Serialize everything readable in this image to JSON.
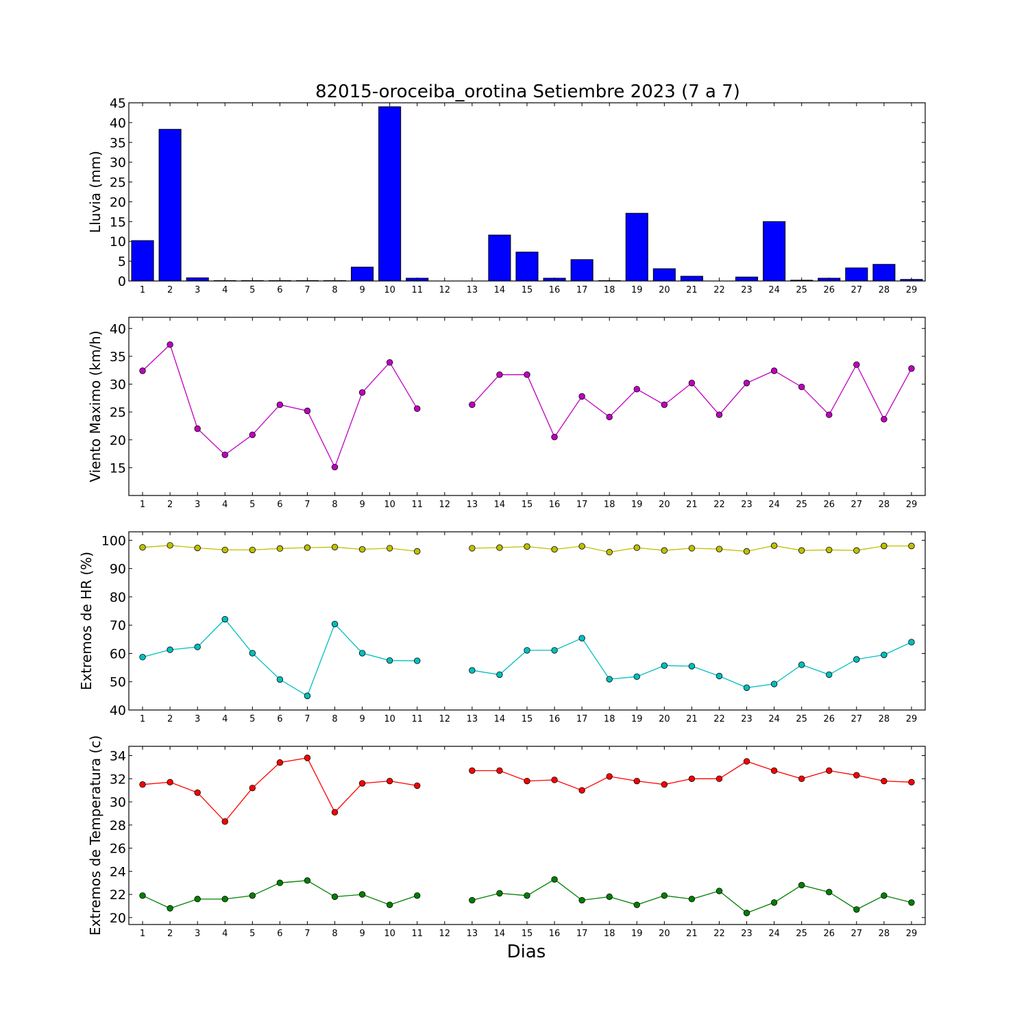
{
  "chart_data": {
    "title": "82015-oroceiba_orotina Setiembre 2023  (7 a 7)",
    "xlabel": "Dias",
    "x": [
      1,
      2,
      3,
      4,
      5,
      6,
      7,
      8,
      9,
      10,
      11,
      12,
      13,
      14,
      15,
      16,
      17,
      18,
      19,
      20,
      21,
      22,
      23,
      24,
      25,
      26,
      27,
      28,
      29
    ],
    "panels": [
      {
        "type": "bar",
        "ylabel": "Lluvia (mm)",
        "ylim": [
          0,
          45
        ],
        "yticks": [
          0,
          5,
          10,
          15,
          20,
          25,
          30,
          35,
          40,
          45
        ],
        "series": [
          {
            "color": "#0000ff",
            "values": [
              10.2,
              38.3,
              0.8,
              0.1,
              0.1,
              0.1,
              0.1,
              0.1,
              3.5,
              44.0,
              0.7,
              0,
              0,
              11.6,
              7.3,
              0.7,
              5.4,
              0.1,
              17.1,
              3.1,
              1.2,
              0,
              1.0,
              15.0,
              0.2,
              0.7,
              3.3,
              4.2,
              0.4
            ]
          }
        ]
      },
      {
        "type": "line",
        "ylabel": "Viento Maximo (km/h)",
        "ylim": [
          10,
          42
        ],
        "yticks": [
          15,
          20,
          25,
          30,
          35,
          40
        ],
        "series": [
          {
            "color": "#bf00bf",
            "values": [
              32.4,
              37.1,
              22.0,
              17.3,
              20.9,
              26.3,
              25.2,
              15.1,
              28.5,
              33.9,
              25.6,
              null,
              26.3,
              31.7,
              31.7,
              20.5,
              27.8,
              24.1,
              29.1,
              26.3,
              30.2,
              24.5,
              30.2,
              32.4,
              29.5,
              24.5,
              33.5,
              23.7,
              32.8
            ]
          }
        ]
      },
      {
        "type": "line",
        "ylabel": "Extremos de HR (%)",
        "ylim": [
          40,
          103
        ],
        "yticks": [
          40,
          50,
          60,
          70,
          80,
          90,
          100
        ],
        "series": [
          {
            "color": "#bfbf00",
            "values": [
              97.5,
              98.2,
              97.3,
              96.6,
              96.6,
              97.1,
              97.4,
              97.6,
              96.8,
              97.2,
              96.1,
              null,
              97.2,
              97.4,
              97.8,
              96.8,
              97.9,
              95.8,
              97.4,
              96.4,
              97.2,
              96.9,
              96.1,
              98.1,
              96.4,
              96.6,
              96.4,
              98.0,
              98.0
            ]
          },
          {
            "color": "#00bfbf",
            "values": [
              58.7,
              61.3,
              62.3,
              72.1,
              60.1,
              50.8,
              45.0,
              70.4,
              60.1,
              57.5,
              57.4,
              null,
              54.0,
              52.5,
              61.1,
              61.1,
              65.4,
              50.9,
              51.8,
              55.7,
              55.5,
              52.0,
              47.9,
              49.2,
              56.0,
              52.5,
              57.9,
              59.5,
              64.0
            ]
          }
        ]
      },
      {
        "type": "line",
        "ylabel": "Extremos de Temperatura (c)",
        "ylim": [
          19.4,
          34.8
        ],
        "yticks": [
          20,
          22,
          24,
          26,
          28,
          30,
          32,
          34
        ],
        "series": [
          {
            "color": "#ff0000",
            "values": [
              31.5,
              31.7,
              30.8,
              28.3,
              31.2,
              33.4,
              33.8,
              29.1,
              31.6,
              31.8,
              31.4,
              null,
              32.7,
              32.7,
              31.8,
              31.9,
              31.0,
              32.2,
              31.8,
              31.5,
              32.0,
              32.0,
              33.5,
              32.7,
              32.0,
              32.7,
              32.3,
              31.8,
              31.7
            ]
          },
          {
            "color": "#007f00",
            "values": [
              21.9,
              20.8,
              21.6,
              21.6,
              21.9,
              23.0,
              23.2,
              21.8,
              22.0,
              21.1,
              21.9,
              null,
              21.5,
              22.1,
              21.9,
              23.3,
              21.5,
              21.8,
              21.1,
              21.9,
              21.6,
              22.3,
              20.4,
              21.3,
              22.8,
              22.2,
              20.7,
              21.9,
              21.3
            ]
          }
        ]
      }
    ]
  }
}
